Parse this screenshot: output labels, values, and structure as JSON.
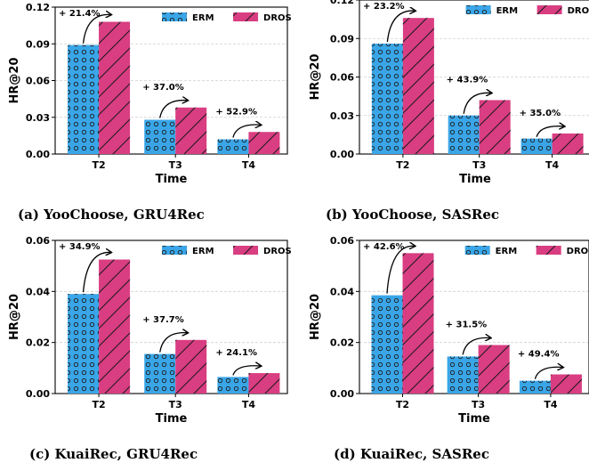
{
  "colors": {
    "erm": "#3aa6e8",
    "dros": "#d93d82"
  },
  "chart_data": [
    {
      "type": "bar",
      "caption": "(a) YooChoose, GRU4Rec",
      "categories": [
        "T2",
        "T3",
        "T4"
      ],
      "series": [
        {
          "name": "ERM",
          "values": [
            0.089,
            0.028,
            0.012
          ]
        },
        {
          "name": "DROS",
          "values": [
            0.108,
            0.038,
            0.018
          ]
        }
      ],
      "annotations": [
        "+ 21.4%",
        "+ 37.0%",
        "+ 52.9%"
      ],
      "xlabel": "Time",
      "ylabel": "HR@20",
      "ylim": [
        0,
        0.12
      ],
      "yticks": [
        "0.00",
        "0.03",
        "0.06",
        "0.09",
        "0.12"
      ],
      "grid": "horizontal",
      "legend": "top-right"
    },
    {
      "type": "bar",
      "caption": "(b) YooChoose, SASRec",
      "categories": [
        "T2",
        "T3",
        "T4"
      ],
      "series": [
        {
          "name": "ERM",
          "values": [
            0.086,
            0.03,
            0.012
          ]
        },
        {
          "name": "DROS",
          "values": [
            0.106,
            0.042,
            0.016
          ]
        }
      ],
      "annotations": [
        "+ 23.2%",
        "+ 43.9%",
        "+ 35.0%"
      ],
      "xlabel": "Time",
      "ylabel": "HR@20",
      "ylim": [
        0,
        0.12
      ],
      "yticks": [
        "0.00",
        "0.03",
        "0.06",
        "0.09",
        "0.12"
      ],
      "grid": "horizontal",
      "legend": "top-right"
    },
    {
      "type": "bar",
      "caption": "(c) KuaiRec, GRU4Rec",
      "categories": [
        "T2",
        "T3",
        "T4"
      ],
      "series": [
        {
          "name": "ERM",
          "values": [
            0.039,
            0.0155,
            0.0065
          ]
        },
        {
          "name": "DROS",
          "values": [
            0.0525,
            0.021,
            0.008
          ]
        }
      ],
      "annotations": [
        "+ 34.9%",
        "+ 37.7%",
        "+ 24.1%"
      ],
      "xlabel": "Time",
      "ylabel": "HR@20",
      "ylim": [
        0,
        0.06
      ],
      "yticks": [
        "0.00",
        "0.02",
        "0.04",
        "0.06"
      ],
      "grid": "horizontal",
      "legend": "top-right"
    },
    {
      "type": "bar",
      "caption": "(d) KuaiRec, SASRec",
      "categories": [
        "T2",
        "T3",
        "T4"
      ],
      "series": [
        {
          "name": "ERM",
          "values": [
            0.0385,
            0.0145,
            0.005
          ]
        },
        {
          "name": "DROS",
          "values": [
            0.055,
            0.019,
            0.0075
          ]
        }
      ],
      "annotations": [
        "+ 42.6%",
        "+ 31.5%",
        "+ 49.4%"
      ],
      "xlabel": "Time",
      "ylabel": "HR@20",
      "ylim": [
        0,
        0.06
      ],
      "yticks": [
        "0.00",
        "0.02",
        "0.04",
        "0.06"
      ],
      "grid": "horizontal",
      "legend": "top-right"
    }
  ]
}
